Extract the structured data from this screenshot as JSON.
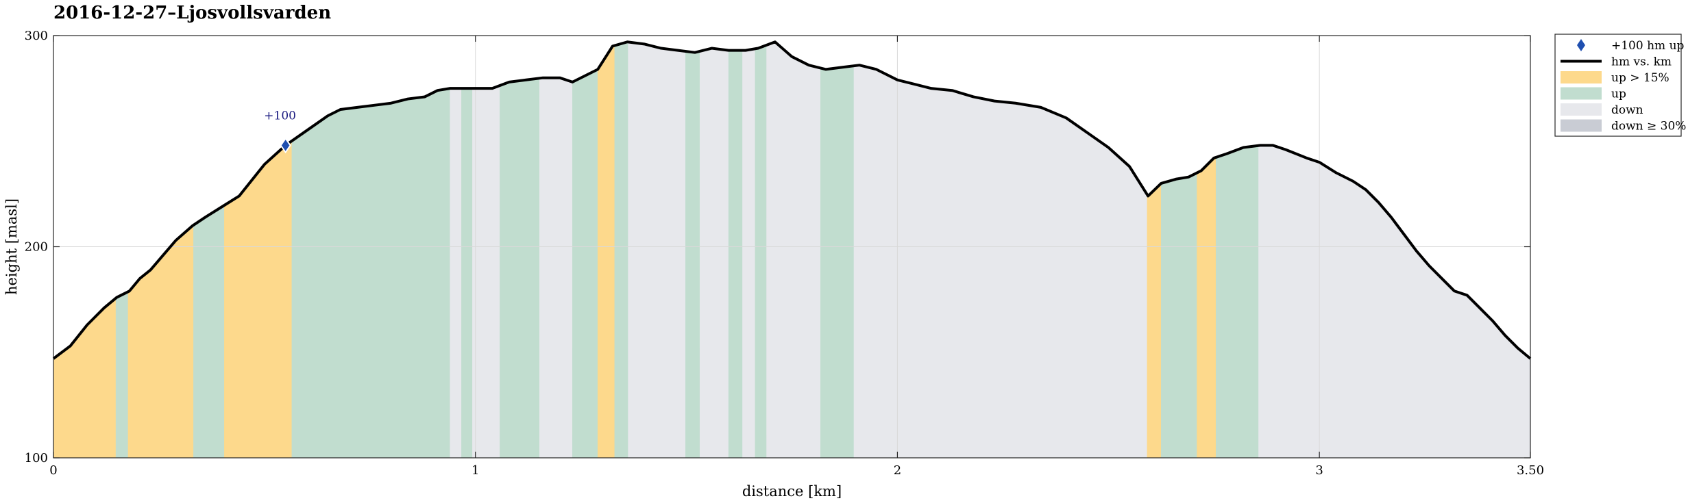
{
  "chart_data": {
    "type": "area",
    "title": "2016-12-27–Ljosvollsvarden",
    "xlabel": "distance [km]",
    "ylabel": "height [masl]",
    "xlim": [
      0,
      3.5
    ],
    "ylim": [
      100,
      300
    ],
    "xticks": [
      0,
      1,
      2,
      3,
      3.5
    ],
    "xtick_labels": [
      "0",
      "1",
      "2",
      "3",
      "3.50"
    ],
    "yticks": [
      100,
      200,
      300
    ],
    "ytick_labels": [
      "100",
      "200",
      "300"
    ],
    "grid": true,
    "legend_placement": "outside-top-right",
    "colors": {
      "line": "#000000",
      "steep_up": "#fdd98c",
      "up": "#c1ddcf",
      "down": "#e7e8ec",
      "steep_down": "#c9ccd4",
      "marker": "#1f4fb0",
      "grid": "#d9d9d9"
    },
    "legend": [
      {
        "key": "marker",
        "label": "+100 hm up"
      },
      {
        "key": "line",
        "label": "hm vs. km"
      },
      {
        "key": "steep_up",
        "label": "up > 15%"
      },
      {
        "key": "up",
        "label": "up"
      },
      {
        "key": "down",
        "label": "down"
      },
      {
        "key": "steep_down",
        "label": "down ≥ 30%"
      }
    ],
    "annotation": {
      "label": "+100",
      "x": 0.55,
      "y": 248
    },
    "profile": {
      "x": [
        0,
        0.04,
        0.08,
        0.12,
        0.15,
        0.18,
        0.205,
        0.23,
        0.26,
        0.29,
        0.33,
        0.36,
        0.4,
        0.44,
        0.5,
        0.55,
        0.6,
        0.65,
        0.68,
        0.72,
        0.76,
        0.8,
        0.84,
        0.88,
        0.91,
        0.94,
        0.97,
        1.0,
        1.04,
        1.08,
        1.12,
        1.16,
        1.2,
        1.23,
        1.26,
        1.29,
        1.325,
        1.36,
        1.4,
        1.44,
        1.48,
        1.52,
        1.56,
        1.6,
        1.64,
        1.67,
        1.71,
        1.75,
        1.79,
        1.83,
        1.87,
        1.91,
        1.95,
        2.0,
        2.04,
        2.08,
        2.13,
        2.18,
        2.23,
        2.28,
        2.34,
        2.4,
        2.45,
        2.5,
        2.55,
        2.594,
        2.625,
        2.66,
        2.69,
        2.72,
        2.75,
        2.78,
        2.82,
        2.86,
        2.89,
        2.92,
        2.97,
        3.0,
        3.04,
        3.08,
        3.11,
        3.14,
        3.17,
        3.2,
        3.23,
        3.26,
        3.29,
        3.32,
        3.35,
        3.38,
        3.41,
        3.44,
        3.47,
        3.5
      ],
      "y": [
        147,
        153,
        163,
        171,
        176,
        179,
        185,
        189,
        196,
        203,
        210,
        214,
        219,
        224,
        239,
        248,
        255,
        262,
        265,
        266,
        267,
        268,
        270,
        271,
        274,
        275,
        275,
        275,
        275,
        278,
        279,
        280,
        280,
        278,
        281,
        284,
        295,
        297,
        296,
        294,
        293,
        292,
        294,
        293,
        293,
        294,
        297,
        290,
        286,
        284,
        285,
        286,
        284,
        279,
        277,
        275,
        274,
        271,
        269,
        268,
        266,
        261,
        254,
        247,
        238,
        224,
        230,
        232,
        233,
        236,
        242,
        244,
        247,
        248,
        248,
        246,
        242,
        240,
        235,
        231,
        227,
        221,
        214,
        206,
        198,
        191,
        185,
        179,
        177,
        171,
        165,
        158,
        152,
        147
      ]
    },
    "segments": [
      {
        "from": 0.0,
        "to": 0.148,
        "cat": "steep_up"
      },
      {
        "from": 0.148,
        "to": 0.177,
        "cat": "up"
      },
      {
        "from": 0.177,
        "to": 0.332,
        "cat": "steep_up"
      },
      {
        "from": 0.332,
        "to": 0.405,
        "cat": "up"
      },
      {
        "from": 0.405,
        "to": 0.565,
        "cat": "steep_up"
      },
      {
        "from": 0.565,
        "to": 0.94,
        "cat": "up"
      },
      {
        "from": 0.94,
        "to": 0.967,
        "cat": "down"
      },
      {
        "from": 0.967,
        "to": 0.993,
        "cat": "up"
      },
      {
        "from": 0.993,
        "to": 1.058,
        "cat": "down"
      },
      {
        "from": 1.058,
        "to": 1.152,
        "cat": "up"
      },
      {
        "from": 1.152,
        "to": 1.23,
        "cat": "down"
      },
      {
        "from": 1.23,
        "to": 1.29,
        "cat": "up"
      },
      {
        "from": 1.29,
        "to": 1.33,
        "cat": "steep_up"
      },
      {
        "from": 1.33,
        "to": 1.362,
        "cat": "up"
      },
      {
        "from": 1.362,
        "to": 1.498,
        "cat": "down"
      },
      {
        "from": 1.498,
        "to": 1.532,
        "cat": "up"
      },
      {
        "from": 1.532,
        "to": 1.6,
        "cat": "down"
      },
      {
        "from": 1.6,
        "to": 1.633,
        "cat": "up"
      },
      {
        "from": 1.633,
        "to": 1.663,
        "cat": "down"
      },
      {
        "from": 1.663,
        "to": 1.69,
        "cat": "up"
      },
      {
        "from": 1.69,
        "to": 1.818,
        "cat": "down"
      },
      {
        "from": 1.818,
        "to": 1.897,
        "cat": "up"
      },
      {
        "from": 1.897,
        "to": 2.592,
        "cat": "down"
      },
      {
        "from": 2.592,
        "to": 2.625,
        "cat": "steep_up"
      },
      {
        "from": 2.625,
        "to": 2.71,
        "cat": "up"
      },
      {
        "from": 2.71,
        "to": 2.755,
        "cat": "steep_up"
      },
      {
        "from": 2.755,
        "to": 2.856,
        "cat": "up"
      },
      {
        "from": 2.856,
        "to": 3.5,
        "cat": "down"
      }
    ]
  }
}
